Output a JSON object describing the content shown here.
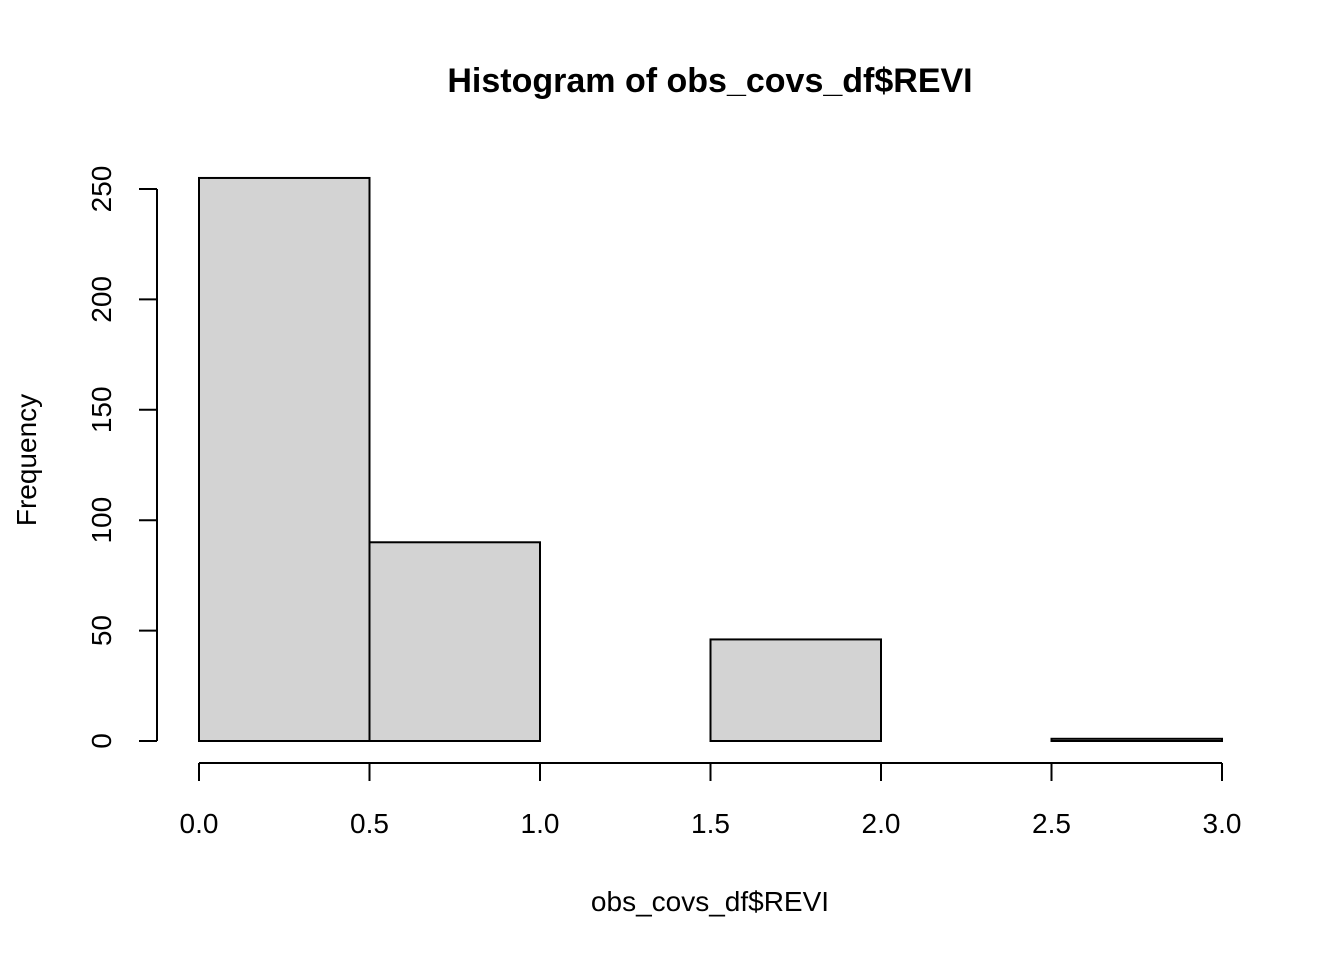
{
  "chart_data": {
    "type": "bar",
    "title": "Histogram of obs_covs_df$REVI",
    "xlabel": "obs_covs_df$REVI",
    "ylabel": "Frequency",
    "bin_edges": [
      0.0,
      0.5,
      1.0,
      1.5,
      2.0,
      2.5,
      3.0
    ],
    "values": [
      255,
      90,
      0,
      46,
      0,
      1
    ],
    "xlim": [
      0.0,
      3.0
    ],
    "ylim": [
      0,
      250
    ],
    "x_ticks": [
      "0.0",
      "0.5",
      "1.0",
      "1.5",
      "2.0",
      "2.5",
      "3.0"
    ],
    "y_ticks": [
      "0",
      "50",
      "100",
      "150",
      "200",
      "250"
    ],
    "bar_fill": "#d3d3d3",
    "bar_stroke": "#000000",
    "grid": false,
    "legend": "none"
  }
}
